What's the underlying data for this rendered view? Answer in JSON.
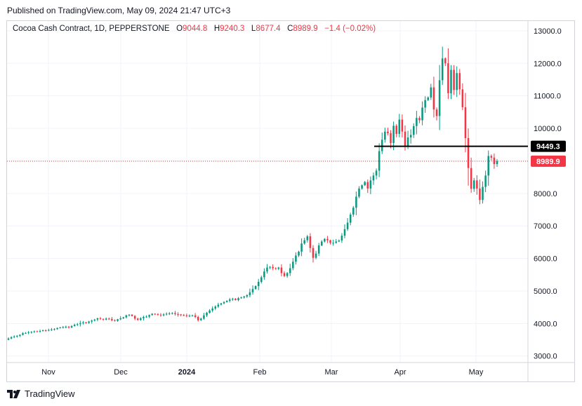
{
  "header": {
    "published": "Published on TradingView.com, May 09, 2024 21:47 UTC+3"
  },
  "legend": {
    "symbol": "Cocoa Cash Contract, 1D, PEPPERSTONE",
    "o_label": "O",
    "o_value": "9044.8",
    "h_label": "H",
    "h_value": "9240.3",
    "l_label": "L",
    "l_value": "8677.4",
    "c_label": "C",
    "c_value": "8989.9",
    "change": "−1.4 (−0.02%)"
  },
  "footer": {
    "brand": "TradingView"
  },
  "colors": {
    "up": "#089981",
    "down": "#f23645",
    "grid": "#f0f3fa",
    "axis_text": "#131722"
  },
  "chart_data": {
    "type": "candlestick",
    "y_ticks": [
      "3000.0",
      "4000.0",
      "5000.0",
      "6000.0",
      "7000.0",
      "8000.0",
      "9000.0",
      "10000.0",
      "11000.0",
      "12000.0",
      "13000.0"
    ],
    "x_ticks": [
      "Nov",
      "Dec",
      "2024",
      "Feb",
      "Mar",
      "Apr",
      "May"
    ],
    "ylim": [
      2800,
      13300
    ],
    "horizontal_line": {
      "value": 9449.3,
      "label": "9449.3"
    },
    "last_price": {
      "value": 8989.9,
      "label": "8989.9"
    },
    "series_closes": [
      3540,
      3580,
      3600,
      3620,
      3650,
      3700,
      3710,
      3730,
      3740,
      3760,
      3750,
      3770,
      3790,
      3780,
      3800,
      3820,
      3830,
      3860,
      3880,
      3890,
      3900,
      3880,
      3920,
      3960,
      3980,
      4010,
      4030,
      4020,
      4060,
      4090,
      4120,
      4160,
      4140,
      4120,
      4150,
      4140,
      4100,
      4080,
      4130,
      4160,
      4190,
      4250,
      4270,
      4230,
      4150,
      4110,
      4160,
      4200,
      4210,
      4260,
      4300,
      4290,
      4270,
      4250,
      4280,
      4300,
      4310,
      4320,
      4290,
      4280,
      4260,
      4250,
      4230,
      4240,
      4250,
      4200,
      4100,
      4150,
      4250,
      4330,
      4400,
      4460,
      4520,
      4580,
      4620,
      4660,
      4700,
      4740,
      4760,
      4720,
      4780,
      4800,
      4830,
      4870,
      4960,
      5060,
      5150,
      5280,
      5420,
      5600,
      5720,
      5740,
      5700,
      5680,
      5720,
      5550,
      5460,
      5550,
      5700,
      5900,
      6090,
      6210,
      6460,
      6560,
      6680,
      6320,
      6020,
      6150,
      6400,
      6520,
      6600,
      6560,
      6480,
      6480,
      6520,
      6550,
      6700,
      6900,
      7100,
      7350,
      7560,
      7900,
      8150,
      8250,
      8350,
      8150,
      8400,
      8550,
      8700,
      9300,
      9650,
      9900,
      9850,
      9550,
      10080,
      9830,
      10270,
      9900,
      9450,
      9720,
      9800,
      10070,
      10320,
      10250,
      10640,
      10870,
      10950,
      11260,
      10580,
      10380,
      11480,
      12150,
      12000,
      11080,
      11800,
      11180,
      11700,
      11200,
      10650,
      9700,
      8780,
      8140,
      8400,
      8150,
      7800,
      8200,
      8550,
      9150,
      9100,
      8900,
      8990
    ]
  }
}
